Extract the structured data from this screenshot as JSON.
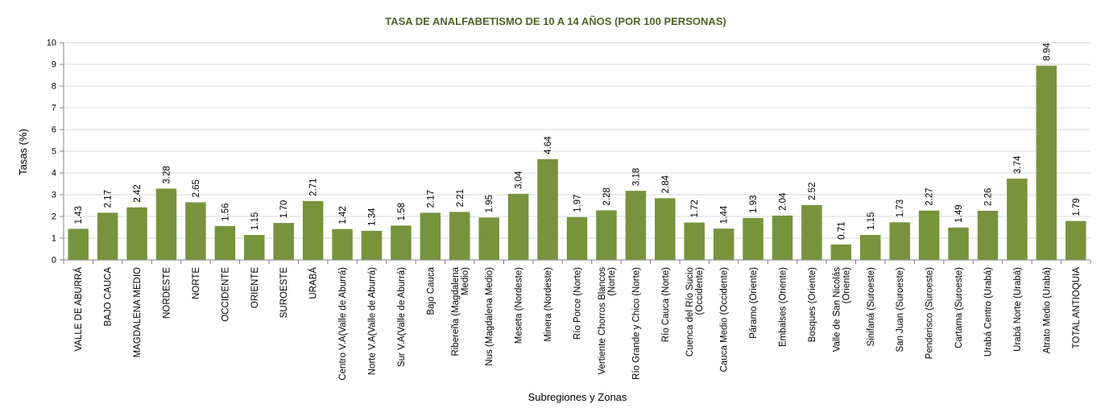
{
  "chart_data": {
    "type": "bar",
    "title": "TASA DE ANALFABETISMO DE 10 A 14 AÑOS (POR 100 PERSONAS)",
    "xlabel": "Subregiones y Zonas",
    "ylabel": "Tasas (%)",
    "ylim": [
      0,
      10
    ],
    "yticks": [
      0,
      1,
      2,
      3,
      4,
      5,
      6,
      7,
      8,
      9,
      10
    ],
    "grid": true,
    "legend": "none",
    "bar_color": "#77933c",
    "title_color": "#4f6228",
    "categories": [
      [
        "VALLE DE ABURRÁ"
      ],
      [
        "BAJO CAUCA"
      ],
      [
        "MAGDALENA MEDIO"
      ],
      [
        "NORDESTE"
      ],
      [
        "NORTE"
      ],
      [
        "OCCIDENTE"
      ],
      [
        "ORIENTE"
      ],
      [
        "SUROESTE"
      ],
      [
        "URABÁ"
      ],
      [
        "Centro V.A(Valle de Aburrá)"
      ],
      [
        "Norte V.A(Valle de Aburrá)"
      ],
      [
        "Sur V.A(Valle de Aburrá)"
      ],
      [
        "Bajo Cauca"
      ],
      [
        "Ribereña  (Magdalena",
        "Medio)"
      ],
      [
        "Nus  (Magdalena Medio)"
      ],
      [
        "Meseta  (Nordeste)"
      ],
      [
        "Minera  (Nordeste)"
      ],
      [
        "Río Porce   (Norte)"
      ],
      [
        "Vertiente Chorros Blancos",
        "(Norte)"
      ],
      [
        "Río Grande y Chico  (Norte)"
      ],
      [
        "Río Cauca  (Norte)"
      ],
      [
        "Cuenca del Río Sucio",
        "(Occidente)"
      ],
      [
        "Cauca Medio  (Occidente)"
      ],
      [
        "Páramo  (Oriente)"
      ],
      [
        "Embalses  (Oriente)"
      ],
      [
        "Bosques  (Oriente)"
      ],
      [
        "Valle de San Nicolás",
        "(Oriente)"
      ],
      [
        "Sinifaná  (Suroeste)"
      ],
      [
        "San Juan  (Suroeste)"
      ],
      [
        "Penderisco  (Suroeste)"
      ],
      [
        "Cartama  (Suroeste)"
      ],
      [
        "Urabá Centro  (Urabá)"
      ],
      [
        "Urabá Norte  (Urabá)"
      ],
      [
        "Atrato Medio  (Urabá)"
      ],
      [
        "TOTAL ANTIOQUIA"
      ]
    ],
    "value_labels": [
      "1.43",
      "2.17",
      "2.42",
      "3.28",
      "2.65",
      "1.56",
      "1.15",
      "1.70",
      "2.71",
      "1.42",
      "1.34",
      "1.58",
      "2.17",
      "2.21",
      "1.95",
      "3.04",
      "4.64",
      "1.97",
      "2.28",
      "3.18",
      "2.84",
      "1.72",
      "1.44",
      "1.93",
      "2.04",
      "2.52",
      "0.71",
      "1.15",
      "1.73",
      "2.27",
      "1.49",
      "2.26",
      "3.74",
      "8.94",
      "1.79"
    ],
    "values": [
      1.43,
      2.17,
      2.42,
      3.28,
      2.65,
      1.56,
      1.15,
      1.7,
      2.71,
      1.42,
      1.34,
      1.58,
      2.17,
      2.21,
      1.95,
      3.04,
      4.64,
      1.97,
      2.28,
      3.18,
      2.84,
      1.72,
      1.44,
      1.93,
      2.04,
      2.52,
      0.71,
      1.15,
      1.73,
      2.27,
      1.49,
      2.26,
      3.74,
      8.94,
      1.79
    ]
  }
}
